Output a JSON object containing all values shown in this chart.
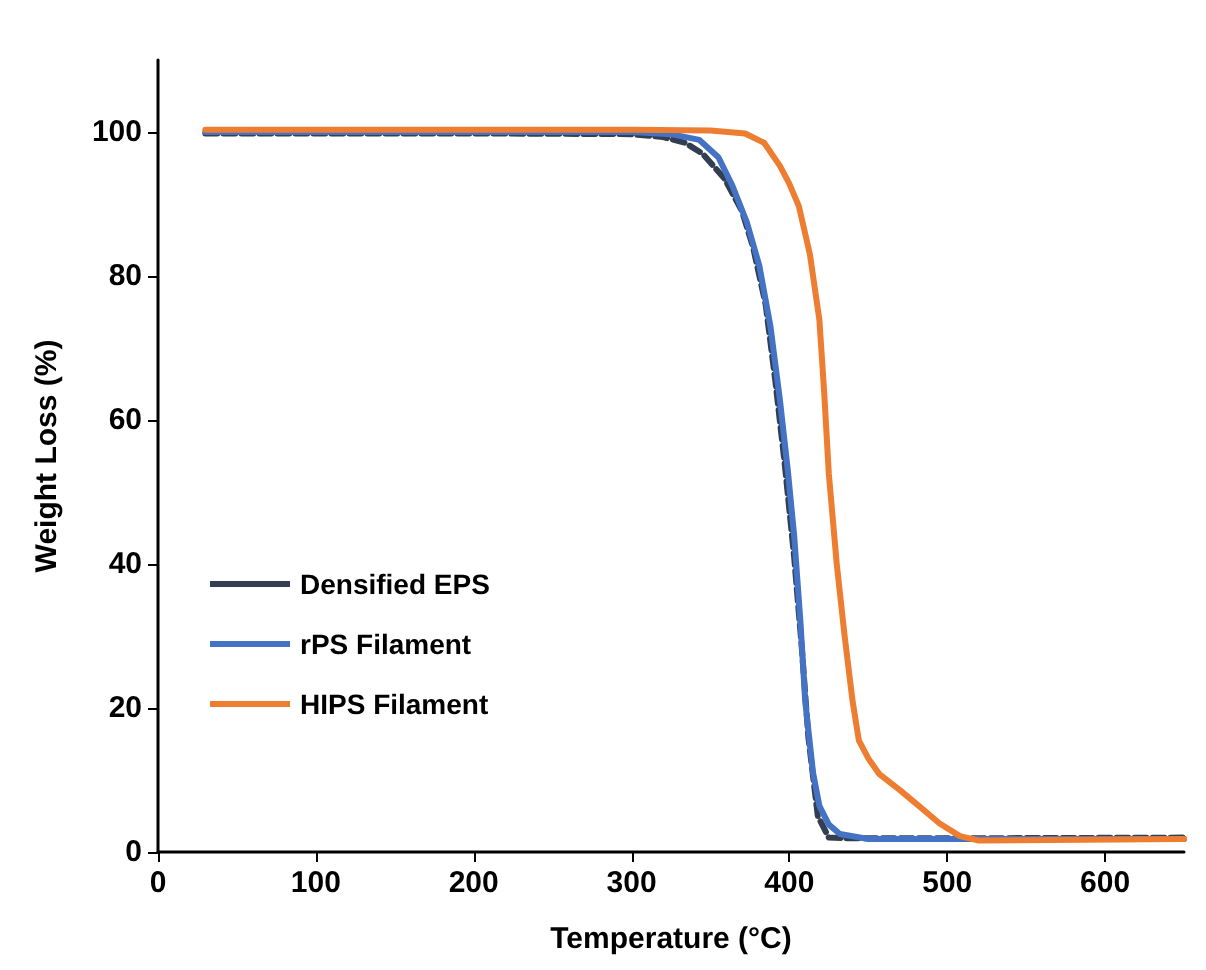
{
  "chart_data": {
    "type": "line",
    "xlabel": "Temperature (°C)",
    "ylabel": "Weight Loss (%)",
    "xlim": [
      0,
      650
    ],
    "xticks": [
      0,
      100,
      200,
      300,
      400,
      500,
      600
    ],
    "ylim": [
      0,
      110
    ],
    "yticks": [
      0,
      20,
      40,
      60,
      80,
      100
    ],
    "grid": false,
    "legend": "left",
    "marker": "none",
    "series": [
      {
        "name": "Densified EPS",
        "color": "#333f50",
        "line_style": "dashed",
        "x": [
          30,
          100,
          200,
          300,
          320,
          334,
          345,
          359,
          370,
          377,
          385,
          391,
          397,
          403,
          408,
          412,
          418,
          425,
          440,
          500,
          650
        ],
        "values": [
          99.8,
          99.8,
          99.8,
          99.7,
          99.3,
          98.5,
          97,
          93.5,
          89,
          84,
          76,
          65.6,
          54,
          41,
          28,
          16,
          5,
          2,
          1.9,
          1.9,
          2
        ]
      },
      {
        "name": "rPS Filament",
        "color": "#4472c4",
        "line_style": "solid",
        "x": [
          30,
          100,
          200,
          300,
          325,
          343,
          355,
          364,
          373,
          381,
          388,
          394,
          399,
          403,
          407,
          410,
          415,
          419,
          425,
          432,
          450,
          650
        ],
        "values": [
          100,
          100,
          100,
          100,
          99.7,
          98.9,
          96.5,
          92.5,
          87.5,
          81.4,
          73,
          62.8,
          53,
          44,
          32,
          21,
          11,
          6.4,
          3.8,
          2.5,
          1.8,
          1.8
        ]
      },
      {
        "name": "HIPS Filament",
        "color": "#ed7d31",
        "line_style": "solid",
        "x": [
          30,
          100,
          200,
          300,
          350,
          372,
          384,
          394,
          400,
          406,
          413,
          419,
          422,
          425,
          430,
          435,
          440,
          444,
          450,
          457,
          470,
          482,
          495,
          508,
          520,
          650
        ],
        "values": [
          100.3,
          100.3,
          100.3,
          100.3,
          100.2,
          99.8,
          98.5,
          95.3,
          92.8,
          89.7,
          83,
          73.9,
          64,
          52.5,
          40,
          30,
          21,
          15.5,
          13,
          10.8,
          8.6,
          6.4,
          4,
          2.2,
          1.6,
          1.8
        ]
      }
    ]
  }
}
